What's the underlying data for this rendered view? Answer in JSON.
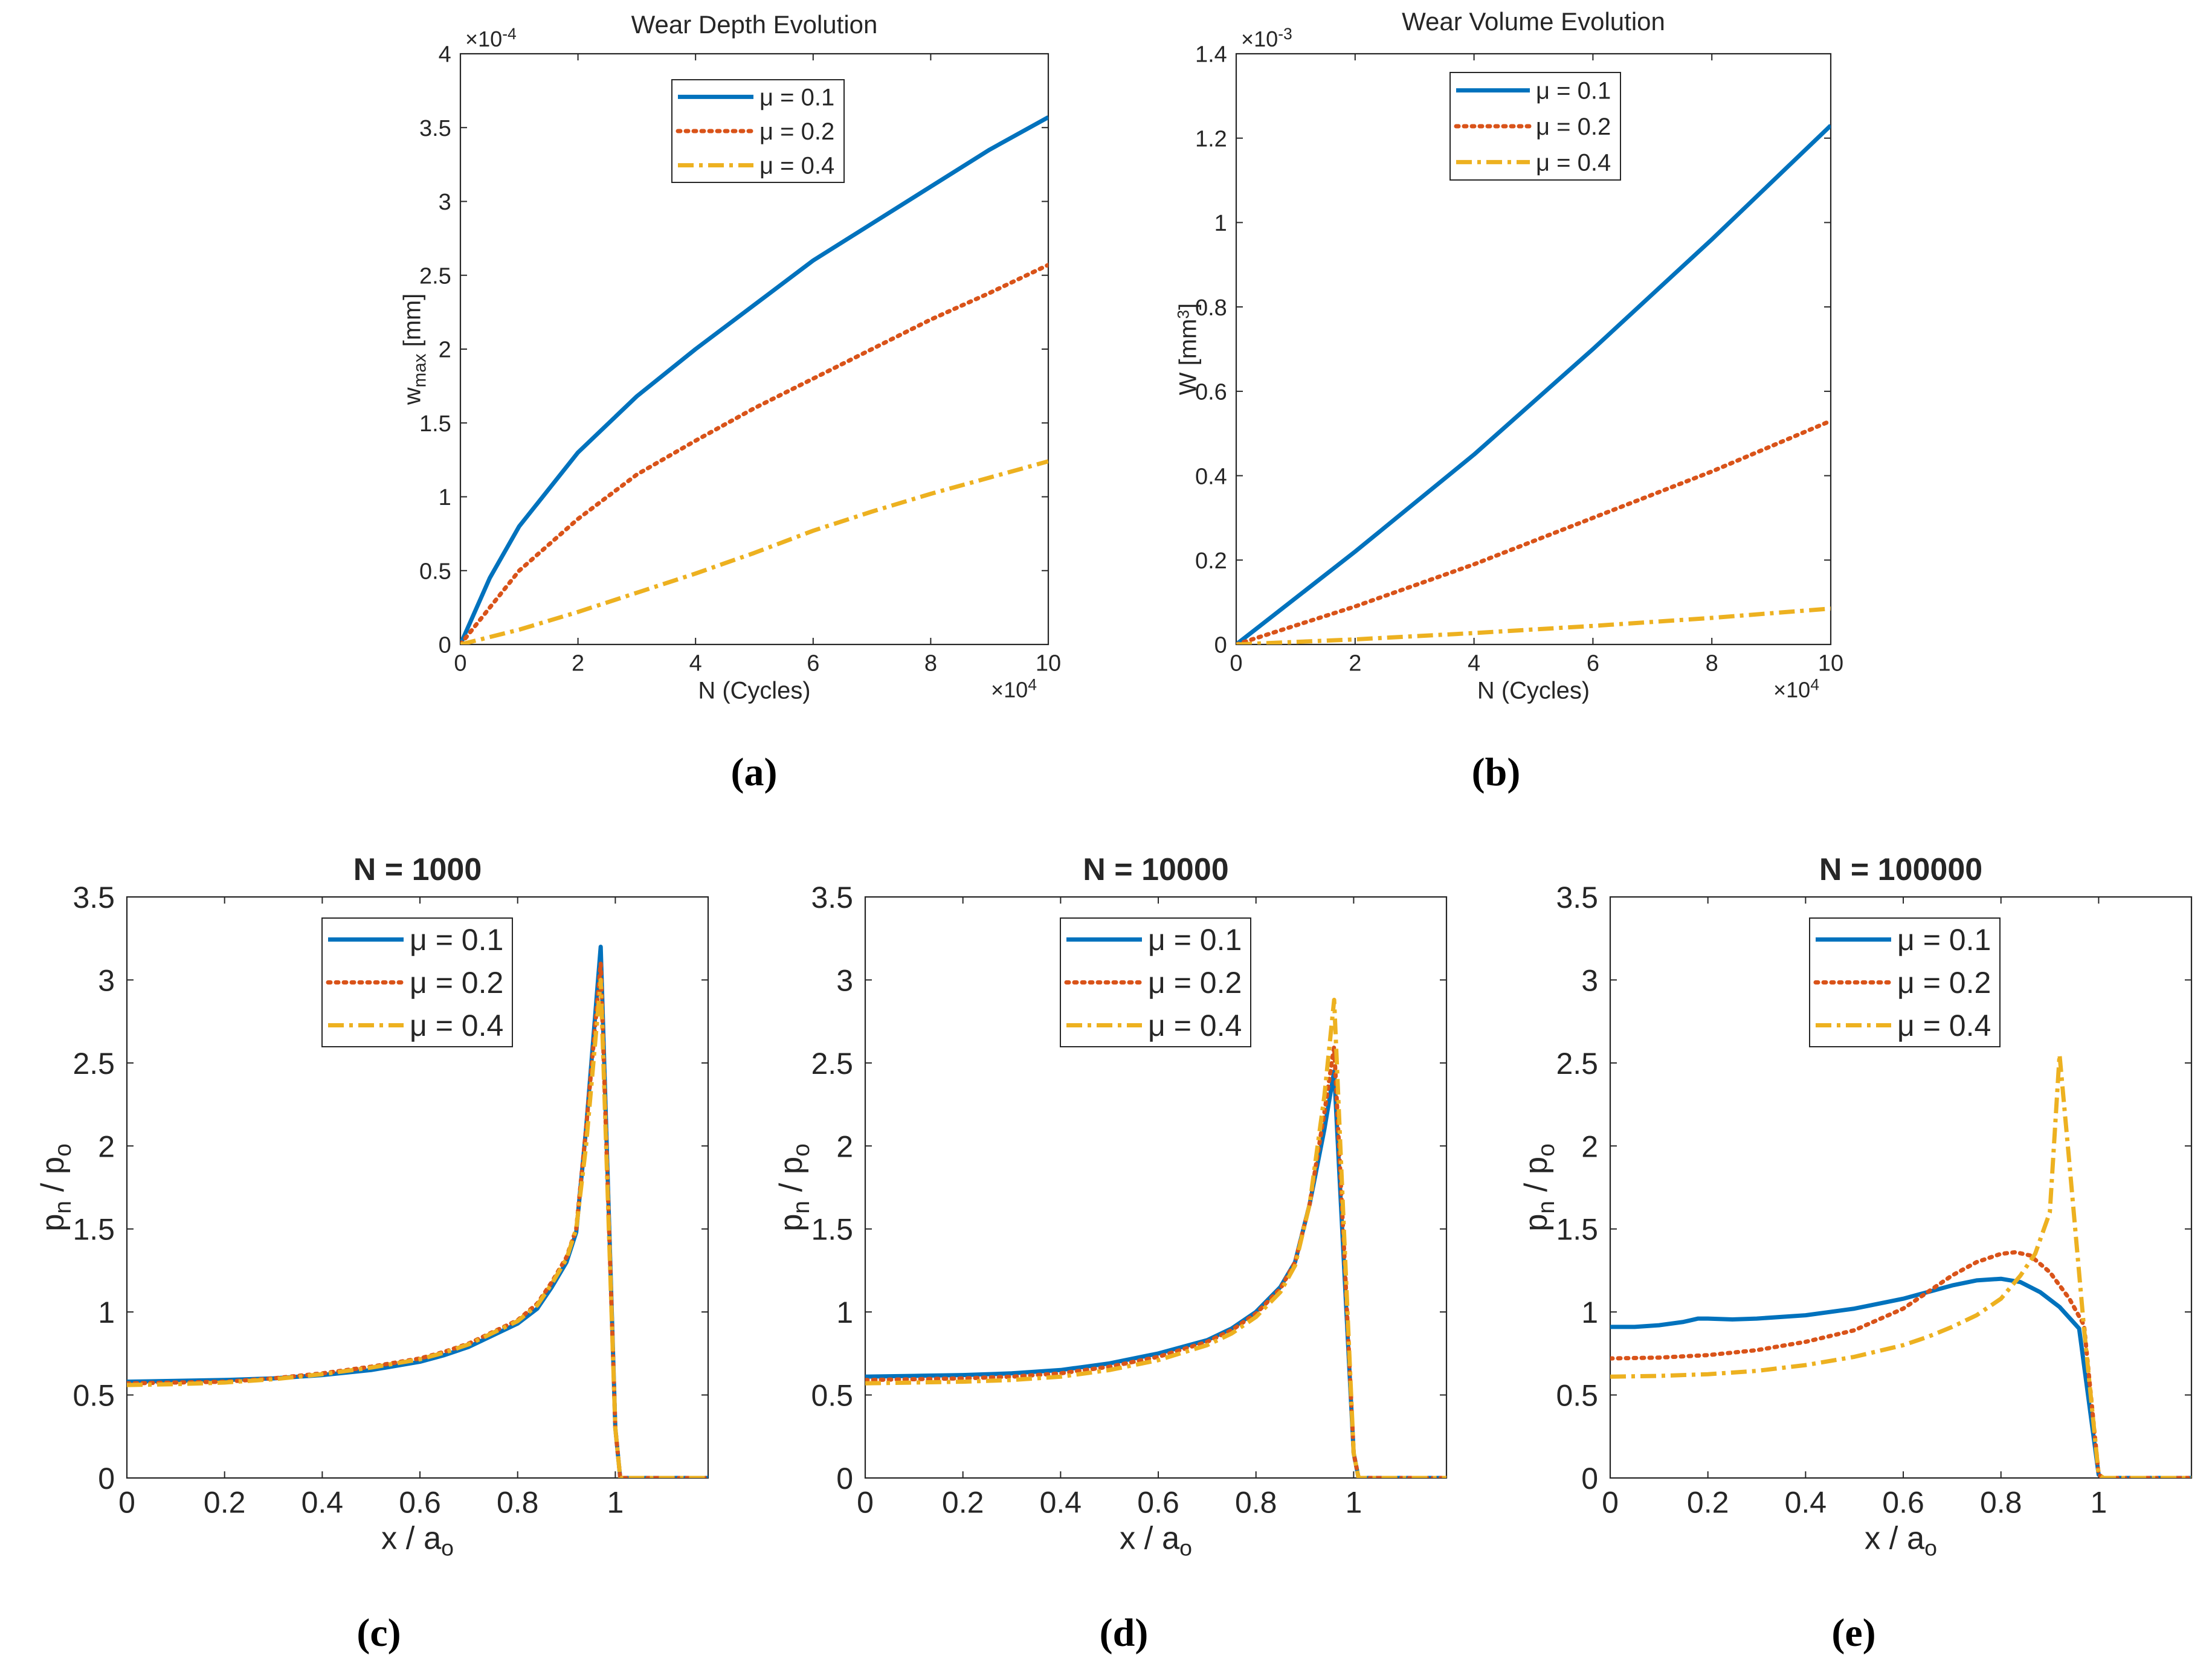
{
  "colors": {
    "s1": "#0072BD",
    "s2": "#D95319",
    "s3": "#EDB120",
    "axis": "#262626"
  },
  "legend_labels": [
    "μ = 0.1",
    "μ = 0.2",
    "μ = 0.4"
  ],
  "chart_data": [
    {
      "id": "a",
      "type": "line",
      "caption": "(a)",
      "title": "Wear Depth Evolution",
      "xlabel": "N (Cycles)",
      "ylabel": "w",
      "ylabel_sub": "max",
      "ylabel_suffix": " [mm]",
      "x_exponent": "×10",
      "x_exponent_power": "4",
      "y_exponent": "×10",
      "y_exponent_power": "-4",
      "xlim": [
        0,
        10
      ],
      "ylim": [
        0,
        4
      ],
      "xticks": [
        0,
        2,
        4,
        6,
        8,
        10
      ],
      "xtick_labels": [
        "0",
        "2",
        "4",
        "6",
        "8",
        "10"
      ],
      "yticks": [
        0,
        0.5,
        1,
        1.5,
        2,
        2.5,
        3,
        3.5,
        4
      ],
      "ytick_labels": [
        "0",
        "0.5",
        "1",
        "1.5",
        "2",
        "2.5",
        "3",
        "3.5",
        "4"
      ],
      "series": [
        {
          "name": "μ = 0.1",
          "x": [
            0,
            0.5,
            1,
            2,
            3,
            4,
            5,
            6,
            7,
            8,
            9,
            10
          ],
          "y": [
            0,
            0.45,
            0.8,
            1.3,
            1.68,
            2.0,
            2.3,
            2.6,
            2.85,
            3.1,
            3.35,
            3.57
          ]
        },
        {
          "name": "μ = 0.2",
          "x": [
            0,
            1,
            2,
            3,
            4,
            5,
            6,
            7,
            8,
            9,
            10
          ],
          "y": [
            0,
            0.5,
            0.85,
            1.15,
            1.38,
            1.6,
            1.8,
            2.0,
            2.2,
            2.38,
            2.57
          ]
        },
        {
          "name": "μ = 0.4",
          "x": [
            0,
            1,
            2,
            3,
            4,
            5,
            6,
            7,
            8,
            9,
            10
          ],
          "y": [
            0,
            0.1,
            0.22,
            0.35,
            0.48,
            0.62,
            0.77,
            0.9,
            1.02,
            1.13,
            1.24
          ]
        }
      ]
    },
    {
      "id": "b",
      "type": "line",
      "caption": "(b)",
      "title": "Wear Volume Evolution",
      "xlabel": "N (Cycles)",
      "ylabel": "W [mm",
      "ylabel_sup": "3",
      "ylabel_suffix": "]",
      "x_exponent": "×10",
      "x_exponent_power": "4",
      "y_exponent": "×10",
      "y_exponent_power": "-3",
      "xlim": [
        0,
        10
      ],
      "ylim": [
        0,
        1.4
      ],
      "xticks": [
        0,
        2,
        4,
        6,
        8,
        10
      ],
      "xtick_labels": [
        "0",
        "2",
        "4",
        "6",
        "8",
        "10"
      ],
      "yticks": [
        0,
        0.2,
        0.4,
        0.6,
        0.8,
        1,
        1.2,
        1.4
      ],
      "ytick_labels": [
        "0",
        "0.2",
        "0.4",
        "0.6",
        "0.8",
        "1",
        "1.2",
        "1.4"
      ],
      "series": [
        {
          "name": "μ = 0.1",
          "x": [
            0,
            2,
            4,
            6,
            8,
            10
          ],
          "y": [
            0,
            0.22,
            0.45,
            0.7,
            0.96,
            1.23
          ]
        },
        {
          "name": "μ = 0.2",
          "x": [
            0,
            2,
            4,
            6,
            8,
            10
          ],
          "y": [
            0,
            0.09,
            0.19,
            0.3,
            0.41,
            0.53
          ]
        },
        {
          "name": "μ = 0.4",
          "x": [
            0,
            2,
            4,
            6,
            8,
            10
          ],
          "y": [
            0,
            0.012,
            0.027,
            0.044,
            0.063,
            0.085
          ]
        }
      ]
    },
    {
      "id": "c",
      "type": "line",
      "caption": "(c)",
      "title": "N = 1000",
      "xlabel": "x / a",
      "xlabel_sub": "o",
      "ylabel": "p",
      "ylabel_sub": "n",
      "ylabel_mid": " / p",
      "ylabel_sub2": "o",
      "xlim": [
        0,
        1.19
      ],
      "ylim": [
        0,
        3.5
      ],
      "xticks": [
        0,
        0.2,
        0.4,
        0.6,
        0.8,
        1
      ],
      "xtick_labels": [
        "0",
        "0.2",
        "0.4",
        "0.6",
        "0.8",
        "1"
      ],
      "yticks": [
        0,
        0.5,
        1,
        1.5,
        2,
        2.5,
        3,
        3.5
      ],
      "ytick_labels": [
        "0",
        "0.5",
        "1",
        "1.5",
        "2",
        "2.5",
        "3",
        "3.5"
      ],
      "series": [
        {
          "name": "μ = 0.1",
          "x": [
            0,
            0.1,
            0.2,
            0.3,
            0.4,
            0.5,
            0.6,
            0.65,
            0.7,
            0.75,
            0.8,
            0.84,
            0.87,
            0.9,
            0.92,
            0.94,
            0.97,
            1.0,
            1.01,
            1.19
          ],
          "y": [
            0.58,
            0.585,
            0.59,
            0.6,
            0.62,
            0.65,
            0.7,
            0.74,
            0.79,
            0.86,
            0.93,
            1.02,
            1.15,
            1.3,
            1.48,
            2.1,
            3.2,
            0.3,
            0,
            0
          ]
        },
        {
          "name": "μ = 0.2",
          "x": [
            0,
            0.1,
            0.2,
            0.3,
            0.4,
            0.5,
            0.6,
            0.65,
            0.7,
            0.75,
            0.8,
            0.84,
            0.87,
            0.9,
            0.92,
            0.94,
            0.97,
            1.0,
            1.01,
            1.19
          ],
          "y": [
            0.57,
            0.575,
            0.58,
            0.6,
            0.63,
            0.67,
            0.72,
            0.76,
            0.81,
            0.88,
            0.95,
            1.05,
            1.18,
            1.33,
            1.5,
            2.1,
            3.1,
            0.3,
            0,
            0
          ]
        },
        {
          "name": "μ = 0.4",
          "x": [
            0,
            0.1,
            0.2,
            0.3,
            0.4,
            0.5,
            0.6,
            0.65,
            0.7,
            0.75,
            0.8,
            0.84,
            0.87,
            0.9,
            0.92,
            0.94,
            0.97,
            1.0,
            1.01,
            1.19
          ],
          "y": [
            0.56,
            0.565,
            0.575,
            0.595,
            0.625,
            0.665,
            0.715,
            0.755,
            0.805,
            0.875,
            0.945,
            1.04,
            1.17,
            1.32,
            1.5,
            2.0,
            3.0,
            0.3,
            0,
            0
          ]
        }
      ]
    },
    {
      "id": "d",
      "type": "line",
      "caption": "(d)",
      "title": "N = 10000",
      "xlabel": "x / a",
      "xlabel_sub": "o",
      "ylabel": "p",
      "ylabel_sub": "n",
      "ylabel_mid": " / p",
      "ylabel_sub2": "o",
      "xlim": [
        0,
        1.19
      ],
      "ylim": [
        0,
        3.5
      ],
      "xticks": [
        0,
        0.2,
        0.4,
        0.6,
        0.8,
        1
      ],
      "xtick_labels": [
        "0",
        "0.2",
        "0.4",
        "0.6",
        "0.8",
        "1"
      ],
      "yticks": [
        0,
        0.5,
        1,
        1.5,
        2,
        2.5,
        3,
        3.5
      ],
      "ytick_labels": [
        "0",
        "0.5",
        "1",
        "1.5",
        "2",
        "2.5",
        "3",
        "3.5"
      ],
      "series": [
        {
          "name": "μ = 0.1",
          "x": [
            0,
            0.1,
            0.2,
            0.3,
            0.4,
            0.5,
            0.6,
            0.7,
            0.75,
            0.8,
            0.85,
            0.88,
            0.91,
            0.94,
            0.96,
            0.98,
            1.0,
            1.01,
            1.19
          ],
          "y": [
            0.61,
            0.615,
            0.62,
            0.63,
            0.65,
            0.69,
            0.75,
            0.83,
            0.9,
            1.0,
            1.15,
            1.3,
            1.65,
            2.1,
            2.45,
            1.3,
            0.15,
            0,
            0
          ]
        },
        {
          "name": "μ = 0.2",
          "x": [
            0,
            0.1,
            0.2,
            0.3,
            0.4,
            0.5,
            0.6,
            0.7,
            0.75,
            0.8,
            0.85,
            0.88,
            0.91,
            0.94,
            0.96,
            0.98,
            1.0,
            1.01,
            1.19
          ],
          "y": [
            0.59,
            0.595,
            0.6,
            0.61,
            0.63,
            0.67,
            0.73,
            0.82,
            0.89,
            0.99,
            1.14,
            1.3,
            1.65,
            2.2,
            2.6,
            1.4,
            0.15,
            0,
            0
          ]
        },
        {
          "name": "μ = 0.4",
          "x": [
            0,
            0.1,
            0.2,
            0.3,
            0.4,
            0.5,
            0.6,
            0.7,
            0.75,
            0.8,
            0.85,
            0.88,
            0.91,
            0.94,
            0.96,
            0.98,
            1.0,
            1.01,
            1.19
          ],
          "y": [
            0.57,
            0.575,
            0.58,
            0.59,
            0.61,
            0.65,
            0.71,
            0.8,
            0.87,
            0.97,
            1.12,
            1.28,
            1.65,
            2.3,
            2.88,
            1.5,
            0.15,
            0,
            0
          ]
        }
      ]
    },
    {
      "id": "e",
      "type": "line",
      "caption": "(e)",
      "title": "N = 100000",
      "xlabel": "x / a",
      "xlabel_sub": "o",
      "ylabel": "p",
      "ylabel_sub": "n",
      "ylabel_mid": " / p",
      "ylabel_sub2": "o",
      "xlim": [
        0,
        1.19
      ],
      "ylim": [
        0,
        3.5
      ],
      "xticks": [
        0,
        0.2,
        0.4,
        0.6,
        0.8,
        1
      ],
      "xtick_labels": [
        "0",
        "0.2",
        "0.4",
        "0.6",
        "0.8",
        "1"
      ],
      "yticks": [
        0,
        0.5,
        1,
        1.5,
        2,
        2.5,
        3,
        3.5
      ],
      "ytick_labels": [
        "0",
        "0.5",
        "1",
        "1.5",
        "2",
        "2.5",
        "3",
        "3.5"
      ],
      "series": [
        {
          "name": "μ = 0.1",
          "x": [
            0,
            0.05,
            0.1,
            0.15,
            0.18,
            0.2,
            0.25,
            0.3,
            0.4,
            0.5,
            0.6,
            0.65,
            0.7,
            0.75,
            0.8,
            0.84,
            0.88,
            0.92,
            0.96,
            1.0,
            1.01,
            1.19
          ],
          "y": [
            0.91,
            0.91,
            0.92,
            0.94,
            0.96,
            0.96,
            0.955,
            0.96,
            0.98,
            1.02,
            1.08,
            1.12,
            1.16,
            1.19,
            1.2,
            1.18,
            1.12,
            1.03,
            0.9,
            0.02,
            0,
            0
          ]
        },
        {
          "name": "μ = 0.2",
          "x": [
            0,
            0.1,
            0.2,
            0.3,
            0.4,
            0.5,
            0.6,
            0.65,
            0.7,
            0.75,
            0.8,
            0.83,
            0.86,
            0.9,
            0.94,
            0.97,
            1.0,
            1.01,
            1.19
          ],
          "y": [
            0.72,
            0.725,
            0.74,
            0.77,
            0.82,
            0.89,
            1.02,
            1.12,
            1.22,
            1.3,
            1.35,
            1.36,
            1.34,
            1.24,
            1.08,
            0.92,
            0.02,
            0,
            0
          ]
        },
        {
          "name": "μ = 0.4",
          "x": [
            0,
            0.1,
            0.2,
            0.3,
            0.4,
            0.5,
            0.6,
            0.65,
            0.7,
            0.75,
            0.8,
            0.84,
            0.87,
            0.9,
            0.92,
            0.94,
            0.97,
            1.0,
            1.01,
            1.19
          ],
          "y": [
            0.61,
            0.615,
            0.625,
            0.645,
            0.68,
            0.73,
            0.8,
            0.85,
            0.91,
            0.98,
            1.08,
            1.22,
            1.35,
            1.6,
            2.55,
            1.9,
            0.9,
            0.02,
            0,
            0
          ]
        }
      ]
    }
  ]
}
